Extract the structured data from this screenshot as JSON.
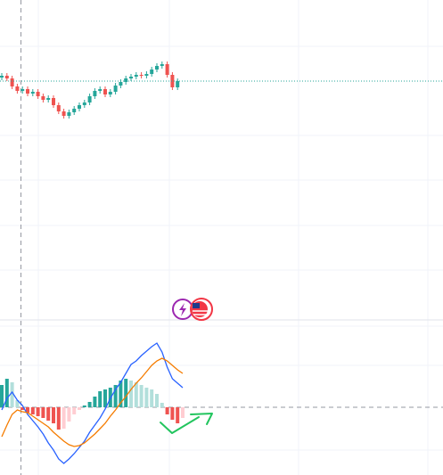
{
  "chart_data": [
    {
      "type": "candlestick",
      "open": [
        268,
        270,
        267,
        258,
        253,
        255,
        250,
        252,
        247,
        243,
        245,
        237,
        230,
        225,
        229,
        233,
        237,
        240,
        247,
        253,
        255,
        249,
        252,
        259,
        263,
        267,
        269,
        271,
        270,
        272,
        277,
        281,
        283,
        271,
        257
      ],
      "high": [
        273,
        273,
        270,
        261,
        258,
        258,
        255,
        255,
        250,
        248,
        248,
        240,
        233,
        232,
        236,
        240,
        243,
        250,
        256,
        258,
        258,
        255,
        262,
        266,
        270,
        272,
        274,
        274,
        275,
        280,
        284,
        286,
        286,
        274,
        267
      ],
      "low": [
        265,
        264,
        255,
        250,
        250,
        247,
        247,
        244,
        240,
        240,
        234,
        227,
        222,
        222,
        226,
        230,
        234,
        237,
        244,
        250,
        246,
        246,
        249,
        256,
        260,
        264,
        266,
        267,
        267,
        269,
        274,
        278,
        268,
        254,
        254
      ],
      "close": [
        270,
        267,
        258,
        253,
        255,
        250,
        252,
        247,
        243,
        245,
        237,
        230,
        225,
        229,
        233,
        237,
        240,
        247,
        253,
        255,
        249,
        252,
        259,
        263,
        267,
        269,
        271,
        270,
        272,
        277,
        281,
        283,
        271,
        257,
        264
      ],
      "up_color": "#26a69a",
      "down_color": "#ef5350",
      "last_price_color": "#26a69a",
      "ylim": [
        0,
        355
      ]
    },
    {
      "type": "macd",
      "histogram": [
        25,
        32,
        28,
        8,
        -3,
        -6,
        -8,
        -10,
        -12,
        -15,
        -18,
        -25,
        -24,
        -16,
        -8,
        -3,
        2,
        6,
        12,
        18,
        20,
        22,
        25,
        30,
        32,
        30,
        28,
        25,
        22,
        20,
        15,
        5,
        -8,
        -14,
        -18,
        -12
      ],
      "histogram_colors": [
        "#26a69a",
        "#b2dfdb",
        "#ef5350",
        "#ffcdd2"
      ],
      "series": [
        {
          "color": "#2962ff",
          "values": [
            -3,
            10,
            17,
            8,
            2,
            -8,
            -15,
            -22,
            -30,
            -40,
            -48,
            -58,
            -63,
            -58,
            -52,
            -45,
            -38,
            -28,
            -20,
            -12,
            -2,
            10,
            20,
            28,
            38,
            48,
            52,
            58,
            63,
            68,
            72,
            62,
            45,
            32,
            27,
            22
          ]
        },
        {
          "color": "#f57c00",
          "values": [
            -33,
            -20,
            -8,
            -3,
            -5,
            -6,
            -10,
            -14,
            -18,
            -22,
            -28,
            -33,
            -38,
            -42,
            -44,
            -43,
            -40,
            -35,
            -30,
            -24,
            -18,
            -10,
            -3,
            5,
            12,
            20,
            27,
            33,
            40,
            47,
            52,
            55,
            52,
            47,
            42,
            38
          ]
        }
      ],
      "ylim": [
        -76,
        92
      ]
    }
  ]
}
